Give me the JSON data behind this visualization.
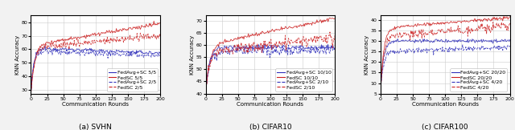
{
  "subplots": [
    {
      "caption": "(a) SVHN",
      "xlabel": "Communication Rounds",
      "ylabel": "KNN Accuracy",
      "xlim": [
        0,
        200
      ],
      "ylim": [
        27,
        85
      ],
      "yticks": [
        30,
        40,
        50,
        60,
        70,
        80
      ],
      "xticks": [
        0,
        25,
        50,
        75,
        100,
        125,
        150,
        175,
        200
      ],
      "legend": [
        "FedAvg+SC 5/5",
        "FedSC 5/5",
        "FedAvg+SC 2/5",
        "FedSC 2/5"
      ],
      "legend_colors": [
        "#3333bb",
        "#cc2222",
        "#3333bb",
        "#cc2222"
      ],
      "legend_ls": [
        "solid",
        "solid",
        "dashed",
        "dashed"
      ],
      "curves": [
        {
          "color": "#3333bb",
          "linestyle": "solid",
          "start_y": 27,
          "plateau": 61,
          "end_y": 57,
          "noise": 0.7,
          "gr": 0.22
        },
        {
          "color": "#cc2222",
          "linestyle": "solid",
          "start_y": 27,
          "plateau": 63,
          "end_y": 79,
          "noise": 0.7,
          "gr": 0.18
        },
        {
          "color": "#3333bb",
          "linestyle": "dashed",
          "start_y": 27,
          "plateau": 59,
          "end_y": 55,
          "noise": 1.1,
          "gr": 0.25
        },
        {
          "color": "#cc2222",
          "linestyle": "dashed",
          "start_y": 27,
          "plateau": 61,
          "end_y": 70,
          "noise": 1.3,
          "gr": 0.2
        }
      ]
    },
    {
      "caption": "(b) CIFAR10",
      "xlabel": "Communication Rounds",
      "ylabel": "KNN Accuracy",
      "xlim": [
        0,
        200
      ],
      "ylim": [
        40,
        72
      ],
      "yticks": [
        40,
        45,
        50,
        55,
        60,
        65,
        70
      ],
      "xticks": [
        0,
        25,
        50,
        75,
        100,
        125,
        150,
        175,
        200
      ],
      "legend": [
        "FedAvg+SC 10/10",
        "FedSC 10/10",
        "FedAvg+SC 2/10",
        "FedSC 2/10"
      ],
      "legend_colors": [
        "#3333bb",
        "#cc2222",
        "#3333bb",
        "#cc2222"
      ],
      "legend_ls": [
        "solid",
        "solid",
        "dashed",
        "dashed"
      ],
      "curves": [
        {
          "color": "#3333bb",
          "linestyle": "solid",
          "start_y": 40,
          "plateau": 59,
          "end_y": 59,
          "noise": 0.5,
          "gr": 0.18
        },
        {
          "color": "#cc2222",
          "linestyle": "solid",
          "start_y": 40,
          "plateau": 60,
          "end_y": 71,
          "noise": 0.4,
          "gr": 0.15
        },
        {
          "color": "#3333bb",
          "linestyle": "dashed",
          "start_y": 40,
          "plateau": 57,
          "end_y": 58,
          "noise": 0.9,
          "gr": 0.2
        },
        {
          "color": "#cc2222",
          "linestyle": "dashed",
          "start_y": 40,
          "plateau": 57,
          "end_y": 63,
          "noise": 1.1,
          "gr": 0.18
        }
      ]
    },
    {
      "caption": "(c) CIFAR100",
      "xlabel": "Communication Rounds",
      "ylabel": "KNN Accuracy",
      "xlim": [
        0,
        200
      ],
      "ylim": [
        5,
        42
      ],
      "yticks": [
        5,
        10,
        15,
        20,
        25,
        30,
        35,
        40
      ],
      "xticks": [
        0,
        25,
        50,
        75,
        100,
        125,
        150,
        175,
        200
      ],
      "legend": [
        "FedAvg+SC 20/20",
        "FedSC 20/20",
        "FedAvg+SC 4/20",
        "FedSC 4/20"
      ],
      "legend_colors": [
        "#3333bb",
        "#cc2222",
        "#3333bb",
        "#cc2222"
      ],
      "legend_ls": [
        "solid",
        "solid",
        "dashed",
        "dashed"
      ],
      "curves": [
        {
          "color": "#3333bb",
          "linestyle": "solid",
          "start_y": 5,
          "plateau": 30,
          "end_y": 30,
          "noise": 0.4,
          "gr": 0.22
        },
        {
          "color": "#cc2222",
          "linestyle": "solid",
          "start_y": 5,
          "plateau": 36,
          "end_y": 41,
          "noise": 0.4,
          "gr": 0.2
        },
        {
          "color": "#3333bb",
          "linestyle": "dashed",
          "start_y": 5,
          "plateau": 25,
          "end_y": 27,
          "noise": 0.7,
          "gr": 0.24
        },
        {
          "color": "#cc2222",
          "linestyle": "dashed",
          "start_y": 5,
          "plateau": 32,
          "end_y": 37,
          "noise": 1.0,
          "gr": 0.2
        }
      ]
    }
  ],
  "fig_background": "#f2f2f2",
  "plot_background": "#ffffff",
  "grid_color": "#cccccc",
  "legend_fontsize": 4.5,
  "axis_label_fontsize": 5.0,
  "caption_fontsize": 6.5,
  "tick_fontsize": 4.5,
  "linewidth": 0.6,
  "n_points": 201
}
